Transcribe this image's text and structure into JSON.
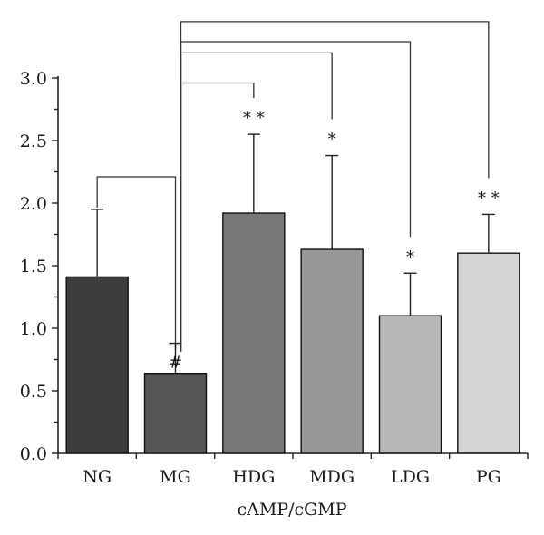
{
  "chart_data": {
    "type": "bar",
    "xlabel": "cAMP/cGMP",
    "ylabel": "",
    "ylim": [
      0,
      3.0
    ],
    "yticks": [
      "0.0",
      "0.5",
      "1.0",
      "1.5",
      "2.0",
      "2.5",
      "3.0"
    ],
    "grid": false,
    "categories": [
      "NG",
      "MG",
      "HDG",
      "MDG",
      "LDG",
      "PG"
    ],
    "values": [
      1.41,
      0.64,
      1.92,
      1.63,
      1.1,
      1.6
    ],
    "error_upper": [
      1.95,
      0.88,
      2.55,
      2.38,
      1.44,
      1.91
    ],
    "colors": [
      "#3d3d3d",
      "#565656",
      "#787878",
      "#989898",
      "#b7b7b7",
      "#d6d6d6"
    ],
    "significance": [
      "",
      "#",
      "**",
      "*",
      "*",
      "**"
    ],
    "comparisons": [
      {
        "from": "NG",
        "to": "MG"
      },
      {
        "from": "MG",
        "to": "HDG"
      },
      {
        "from": "MG",
        "to": "MDG"
      },
      {
        "from": "MG",
        "to": "LDG"
      },
      {
        "from": "MG",
        "to": "PG"
      }
    ]
  }
}
